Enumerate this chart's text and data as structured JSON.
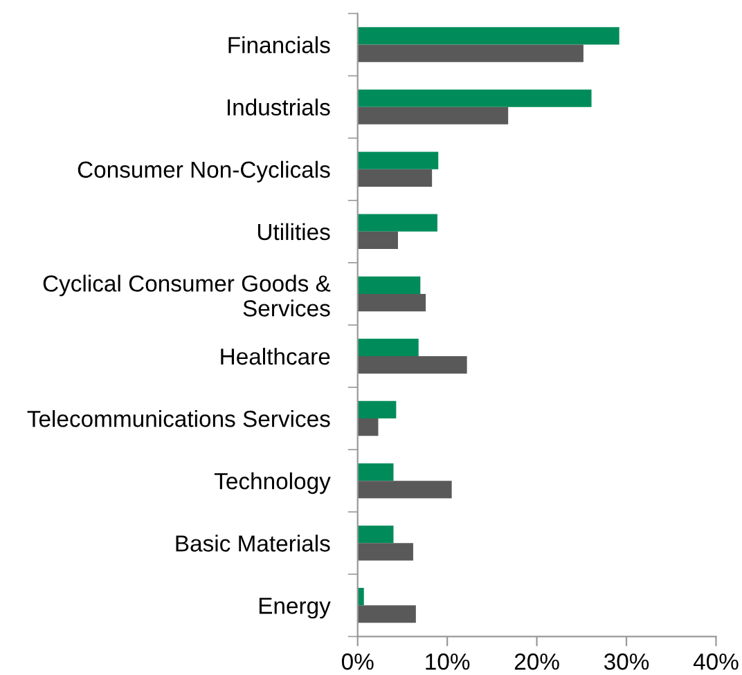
{
  "chart_data": {
    "type": "bar",
    "orientation": "horizontal",
    "categories": [
      "Financials",
      "Industrials",
      "Consumer Non-Cyclicals",
      "Utilities",
      "Cyclical Consumer Goods & Services",
      "Healthcare",
      "Telecommunications Services",
      "Technology",
      "Basic Materials",
      "Energy"
    ],
    "series": [
      {
        "color": "#008c5a",
        "values": [
          29.2,
          26.1,
          9.0,
          8.9,
          7.0,
          6.8,
          4.3,
          4.0,
          4.0,
          0.7
        ]
      },
      {
        "color": "#595959",
        "values": [
          25.2,
          16.8,
          8.3,
          4.5,
          7.6,
          12.2,
          2.3,
          10.5,
          6.2,
          6.5
        ]
      }
    ],
    "xlim": [
      0,
      40
    ],
    "xticks": [
      {
        "value": 0,
        "label": "0%"
      },
      {
        "value": 10,
        "label": "10%"
      },
      {
        "value": 20,
        "label": "20%"
      },
      {
        "value": 30,
        "label": "30%"
      },
      {
        "value": 40,
        "label": "40%"
      }
    ],
    "grid": false,
    "legend": false
  }
}
